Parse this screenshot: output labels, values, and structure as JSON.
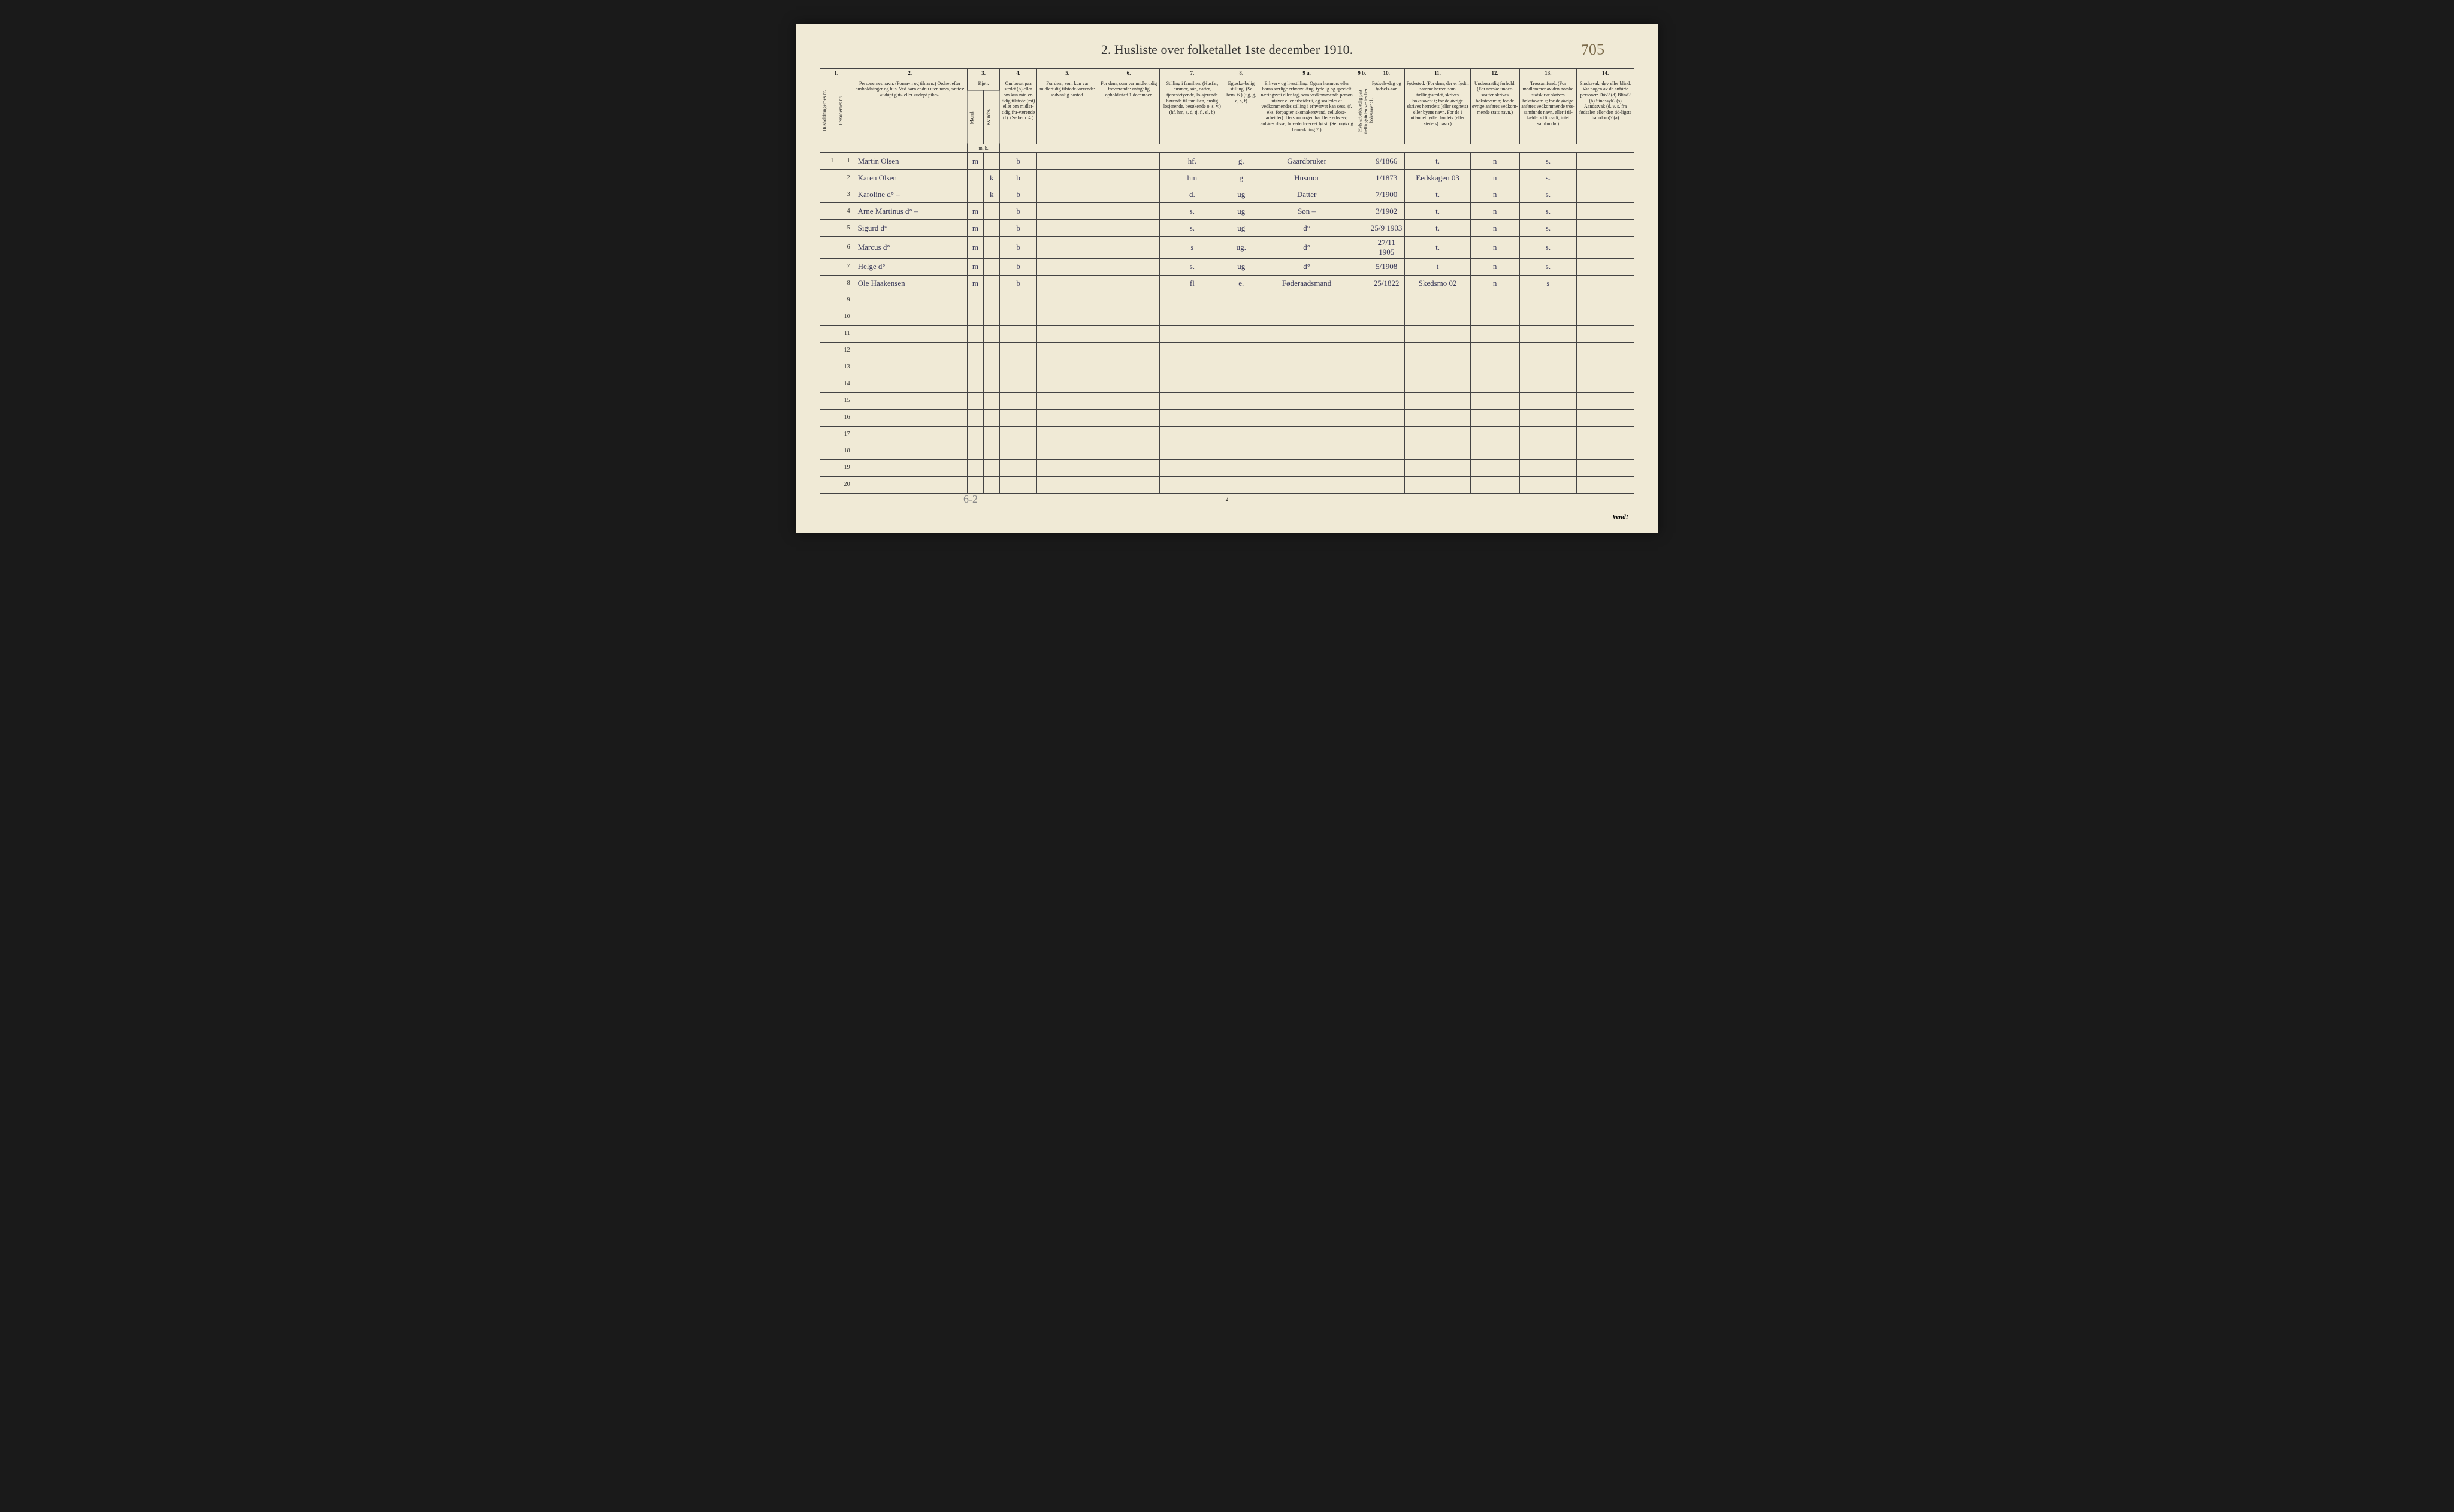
{
  "title": "2.  Husliste over folketallet 1ste december 1910.",
  "top_annotation": "705",
  "footer_annotation": "6-2",
  "footer_note": "Vend!",
  "page_number_bottom": "2",
  "col_numbers": [
    "1.",
    "2.",
    "3.",
    "4.",
    "5.",
    "6.",
    "7.",
    "8.",
    "9 a.",
    "9 b.",
    "10.",
    "11.",
    "12.",
    "13.",
    "14."
  ],
  "headers": {
    "c1a": "Husholdningernes nr.",
    "c1b": "Personernes nr.",
    "c2": "Personernes navn.\n(Fornavn og tilnavn.)\nOrdnet efter husholdninger og hus.\nVed barn endnu uten navn, sættes: «udøpt gut» eller «udøpt pike».",
    "c3": "Kjøn.",
    "c3a": "Mænd.",
    "c3b": "Kvinder.",
    "c3c": "m. k.",
    "c4": "Om bosat paa stedet (b) eller om kun midler-tidig tilstede (mt) eller om midler-tidig fra-værende (f). (Se bem. 4.)",
    "c5": "For dem, som kun var midlertidig tilstede-værende:\nsedvanlig bosted.",
    "c6": "For dem, som var midlertidig fraværende:\nantagelig opholdssted 1 december.",
    "c7": "Stilling i familien.\n(Husfar, husmor, søn, datter, tjenestetyende, lo-sjerende hørende til familien, enslig losjerende, besøkende o. s. v.)\n(hf, hm, s, d, tj, fl, el, b)",
    "c8": "Egteska-belig stilling.\n(Se bem. 6.)\n(ug, g, e, s, f)",
    "c9": "Erhverv og livsstilling.\nOgsaa husmors eller barns særlige erhverv.\nAngi tydelig og specielt næringsvei eller fag, som vedkommende person utøver eller arbeider i, og saaledes at vedkommendes stilling i erhvervet kan sees, (f. eks. forpagter, skomakersvend, cellulose-arbeider). Dersom nogen har flere erhverv, anføres disse, hovederhvervet først.\n(Se forøvrig bemerkning 7.)",
    "c9b": "Hvis arbeidsledig paa tællingstiden sættes her bokstaven: l.",
    "c10": "Fødsels-dag og fødsels-aar.",
    "c11": "Fødested.\n(For dem, der er født i samme herred som tællingsstedet, skrives bokstaven: t; for de øvrige skrives herredets (eller sognets) eller byens navn. For de i utlandet fødte: landets (eller stedets) navn.)",
    "c12": "Undersaatlig forhold.\n(For norske under-saatter skrives bokstaven: n; for de øvrige anføres vedkom-mende stats navn.)",
    "c13": "Trossamfund.\n(For medlemmer av den norske statskirke skrives bokstaven: s; for de øvrige anføres vedkommende tros-samfunds navn, eller i til-fælde: «Uttraadt, intet samfund».)",
    "c14": "Sindssvak, døv eller blind.\nVar nogen av de anførte personer:\nDøv? (d)\nBlind? (b)\nSindssyk? (s)\nAandssvak (d. v. s. fra fødselen eller den tid-ligste barndom)? (a)"
  },
  "rows": [
    {
      "hnr": "1",
      "pnr": "1",
      "name": "Martin Olsen",
      "sex_m": "m",
      "sex_k": "",
      "res": "b",
      "c5": "",
      "c6": "",
      "c7": "hf.",
      "c8": "g.",
      "c9": "Gaardbruker",
      "c9b": "",
      "c10": "9/1866",
      "c11": "t.",
      "c12": "n",
      "c13": "s.",
      "c14": ""
    },
    {
      "hnr": "",
      "pnr": "2",
      "name": "Karen Olsen",
      "sex_m": "",
      "sex_k": "k",
      "res": "b",
      "c5": "",
      "c6": "",
      "c7": "hm",
      "c8": "g",
      "c9": "Husmor",
      "c9b": "",
      "c10": "1/1873",
      "c11": "Eedskagen 03",
      "c12": "n",
      "c13": "s.",
      "c14": ""
    },
    {
      "hnr": "",
      "pnr": "3",
      "name": "Karoline d° –",
      "sex_m": "",
      "sex_k": "k",
      "res": "b",
      "c5": "",
      "c6": "",
      "c7": "d.",
      "c8": "ug",
      "c9": "Datter",
      "c9b": "",
      "c10": "7/1900",
      "c11": "t.",
      "c12": "n",
      "c13": "s.",
      "c14": ""
    },
    {
      "hnr": "",
      "pnr": "4",
      "name": "Arne Martinus d° –",
      "sex_m": "m",
      "sex_k": "",
      "res": "b",
      "c5": "",
      "c6": "",
      "c7": "s.",
      "c8": "ug",
      "c9": "Søn –",
      "c9b": "",
      "c10": "3/1902",
      "c11": "t.",
      "c12": "n",
      "c13": "s.",
      "c14": ""
    },
    {
      "hnr": "",
      "pnr": "5",
      "name": "Sigurd d°",
      "sex_m": "m",
      "sex_k": "",
      "res": "b",
      "c5": "",
      "c6": "",
      "c7": "s.",
      "c8": "ug",
      "c9": "d°",
      "c9b": "",
      "c10": "25/9 1903",
      "c11": "t.",
      "c12": "n",
      "c13": "s.",
      "c14": ""
    },
    {
      "hnr": "",
      "pnr": "6",
      "name": "Marcus d°",
      "sex_m": "m",
      "sex_k": "",
      "res": "b",
      "c5": "",
      "c6": "",
      "c7": "s",
      "c8": "ug.",
      "c9": "d°",
      "c9b": "",
      "c10": "27/11 1905",
      "c11": "t.",
      "c12": "n",
      "c13": "s.",
      "c14": ""
    },
    {
      "hnr": "",
      "pnr": "7",
      "name": "Helge d°",
      "sex_m": "m",
      "sex_k": "",
      "res": "b",
      "c5": "",
      "c6": "",
      "c7": "s.",
      "c8": "ug",
      "c9": "d°",
      "c9b": "",
      "c10": "5/1908",
      "c11": "t",
      "c12": "n",
      "c13": "s.",
      "c14": ""
    },
    {
      "hnr": "",
      "pnr": "8",
      "name": "Ole Haakensen",
      "sex_m": "m",
      "sex_k": "",
      "res": "b",
      "c5": "",
      "c6": "",
      "c7": "fl",
      "c8": "e.",
      "c9": "Føderaadsmand",
      "c9b": "",
      "c10": "25/1822",
      "c11": "Skedsmo 02",
      "c12": "n",
      "c13": "s",
      "c14": ""
    },
    {
      "hnr": "",
      "pnr": "9",
      "name": "",
      "sex_m": "",
      "sex_k": "",
      "res": "",
      "c5": "",
      "c6": "",
      "c7": "",
      "c8": "",
      "c9": "",
      "c9b": "",
      "c10": "",
      "c11": "",
      "c12": "",
      "c13": "",
      "c14": ""
    },
    {
      "hnr": "",
      "pnr": "10",
      "name": "",
      "sex_m": "",
      "sex_k": "",
      "res": "",
      "c5": "",
      "c6": "",
      "c7": "",
      "c8": "",
      "c9": "",
      "c9b": "",
      "c10": "",
      "c11": "",
      "c12": "",
      "c13": "",
      "c14": ""
    },
    {
      "hnr": "",
      "pnr": "11",
      "name": "",
      "sex_m": "",
      "sex_k": "",
      "res": "",
      "c5": "",
      "c6": "",
      "c7": "",
      "c8": "",
      "c9": "",
      "c9b": "",
      "c10": "",
      "c11": "",
      "c12": "",
      "c13": "",
      "c14": ""
    },
    {
      "hnr": "",
      "pnr": "12",
      "name": "",
      "sex_m": "",
      "sex_k": "",
      "res": "",
      "c5": "",
      "c6": "",
      "c7": "",
      "c8": "",
      "c9": "",
      "c9b": "",
      "c10": "",
      "c11": "",
      "c12": "",
      "c13": "",
      "c14": ""
    },
    {
      "hnr": "",
      "pnr": "13",
      "name": "",
      "sex_m": "",
      "sex_k": "",
      "res": "",
      "c5": "",
      "c6": "",
      "c7": "",
      "c8": "",
      "c9": "",
      "c9b": "",
      "c10": "",
      "c11": "",
      "c12": "",
      "c13": "",
      "c14": ""
    },
    {
      "hnr": "",
      "pnr": "14",
      "name": "",
      "sex_m": "",
      "sex_k": "",
      "res": "",
      "c5": "",
      "c6": "",
      "c7": "",
      "c8": "",
      "c9": "",
      "c9b": "",
      "c10": "",
      "c11": "",
      "c12": "",
      "c13": "",
      "c14": ""
    },
    {
      "hnr": "",
      "pnr": "15",
      "name": "",
      "sex_m": "",
      "sex_k": "",
      "res": "",
      "c5": "",
      "c6": "",
      "c7": "",
      "c8": "",
      "c9": "",
      "c9b": "",
      "c10": "",
      "c11": "",
      "c12": "",
      "c13": "",
      "c14": ""
    },
    {
      "hnr": "",
      "pnr": "16",
      "name": "",
      "sex_m": "",
      "sex_k": "",
      "res": "",
      "c5": "",
      "c6": "",
      "c7": "",
      "c8": "",
      "c9": "",
      "c9b": "",
      "c10": "",
      "c11": "",
      "c12": "",
      "c13": "",
      "c14": ""
    },
    {
      "hnr": "",
      "pnr": "17",
      "name": "",
      "sex_m": "",
      "sex_k": "",
      "res": "",
      "c5": "",
      "c6": "",
      "c7": "",
      "c8": "",
      "c9": "",
      "c9b": "",
      "c10": "",
      "c11": "",
      "c12": "",
      "c13": "",
      "c14": ""
    },
    {
      "hnr": "",
      "pnr": "18",
      "name": "",
      "sex_m": "",
      "sex_k": "",
      "res": "",
      "c5": "",
      "c6": "",
      "c7": "",
      "c8": "",
      "c9": "",
      "c9b": "",
      "c10": "",
      "c11": "",
      "c12": "",
      "c13": "",
      "c14": ""
    },
    {
      "hnr": "",
      "pnr": "19",
      "name": "",
      "sex_m": "",
      "sex_k": "",
      "res": "",
      "c5": "",
      "c6": "",
      "c7": "",
      "c8": "",
      "c9": "",
      "c9b": "",
      "c10": "",
      "c11": "",
      "c12": "",
      "c13": "",
      "c14": ""
    },
    {
      "hnr": "",
      "pnr": "20",
      "name": "",
      "sex_m": "",
      "sex_k": "",
      "res": "",
      "c5": "",
      "c6": "",
      "c7": "",
      "c8": "",
      "c9": "",
      "c9b": "",
      "c10": "",
      "c11": "",
      "c12": "",
      "c13": "",
      "c14": ""
    }
  ]
}
